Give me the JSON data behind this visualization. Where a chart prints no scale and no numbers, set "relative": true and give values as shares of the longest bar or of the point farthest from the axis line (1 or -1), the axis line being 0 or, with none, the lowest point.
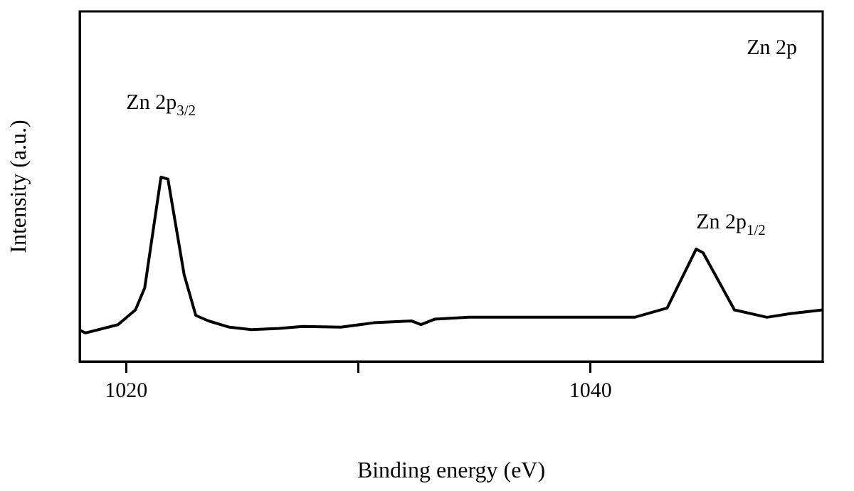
{
  "chart_data": {
    "type": "line",
    "relative": true,
    "xlabel": "Binding energy (eV)",
    "ylabel": "Intensity (a.u.)",
    "xlim": [
      1018,
      1050
    ],
    "xticks": [
      1020,
      {
        "value": 1030,
        "label": null
      },
      1040
    ],
    "grid": false,
    "legend": false,
    "marker": "none",
    "line_style": "solid",
    "annotations": [
      "Zn 2p",
      {
        "text": "Zn 2p$_{3/2}$",
        "x": 1021.5,
        "y": 1.0
      },
      {
        "text": "Zn 2p$_{1/2}$",
        "x": 1044.55,
        "y": 0.61
      }
    ],
    "series": [
      {
        "color": "#000000",
        "x": [
          1018,
          1018.25,
          1019.65,
          1020.4,
          1020.8,
          1021.5,
          1021.8,
          1022.5,
          1023.0,
          1023.55,
          1024.45,
          1025.4,
          1026.6,
          1027.6,
          1029.25,
          1030.65,
          1032.3,
          1032.7,
          1033.3,
          1034.75,
          1037.2,
          1038.8,
          1040.25,
          1041.9,
          1043.3,
          1044.55,
          1044.85,
          1046.2,
          1047.6,
          1048.6,
          1050
        ],
        "values": [
          0.17,
          0.155,
          0.2,
          0.28,
          0.4,
          1.0,
          0.99,
          0.47,
          0.25,
          0.22,
          0.186,
          0.173,
          0.18,
          0.19,
          0.186,
          0.21,
          0.22,
          0.2,
          0.23,
          0.24,
          0.24,
          0.24,
          0.24,
          0.24,
          0.29,
          0.61,
          0.59,
          0.28,
          0.24,
          0.26,
          0.28
        ]
      }
    ]
  }
}
